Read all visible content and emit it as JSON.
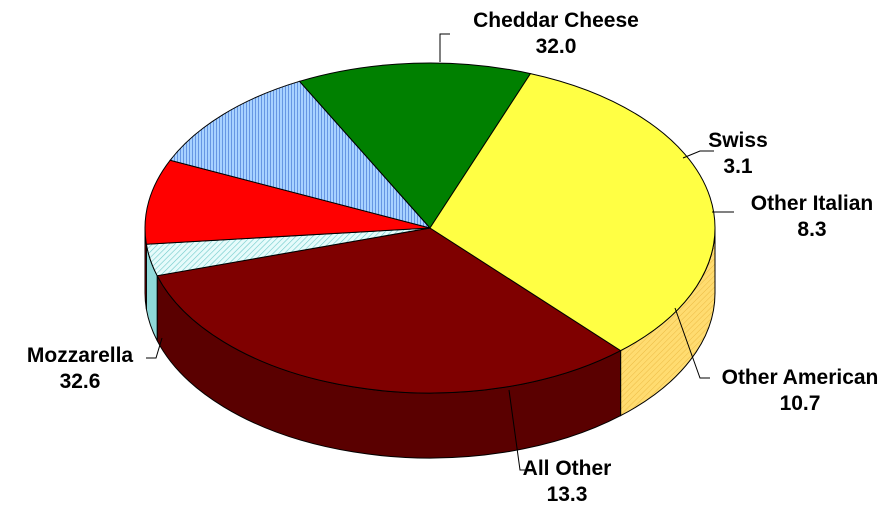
{
  "chart_data": {
    "type": "pie",
    "title": "",
    "slices": [
      {
        "label": "Cheddar Cheese",
        "value": 32.0,
        "display": "32.0",
        "color": "#7f0000",
        "side_color": "#5a0000"
      },
      {
        "label": "Swiss",
        "value": 3.1,
        "display": "3.1",
        "color": "#c8f5f5",
        "side_color": "#8fd8d8",
        "pattern": "hatched"
      },
      {
        "label": "Other Italian",
        "value": 8.3,
        "display": "8.3",
        "color": "#ff0000",
        "side_color": "#c00000"
      },
      {
        "label": "Other American",
        "value": 10.7,
        "display": "10.7",
        "color": "#99ccff",
        "side_color": "#7b68ee",
        "pattern": "vertical-lines"
      },
      {
        "label": "All Other",
        "value": 13.3,
        "display": "13.3",
        "color": "#008000",
        "side_color": "#005000"
      },
      {
        "label": "Mozzarella",
        "value": 32.6,
        "display": "32.6",
        "color": "#ffff44",
        "side_color": "#ffd966",
        "pattern": "hatched-side"
      }
    ],
    "legend": "none",
    "style": "3d"
  }
}
